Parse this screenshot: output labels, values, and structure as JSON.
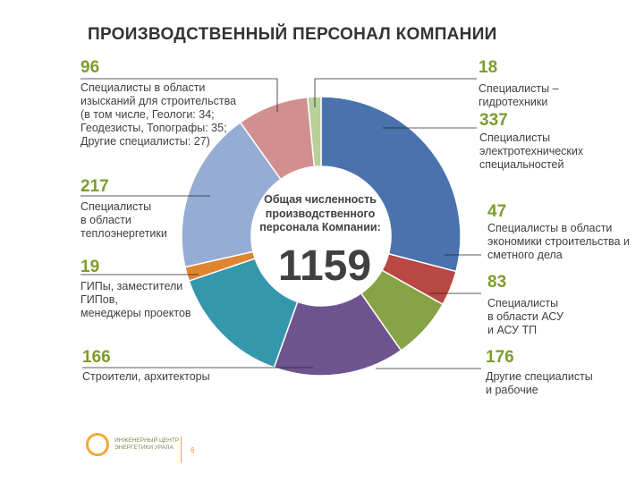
{
  "title": "ПРОИЗВОДСТВЕННЫЙ ПЕРСОНАЛ КОМПАНИИ",
  "center": {
    "text": "Общая численность\nпроизводственного\nперсонала Компании:",
    "total": "1159"
  },
  "labels": {
    "hydro_val": "18",
    "hydro_desc": "Специалисты –\nгидротехники",
    "electro_val": "337",
    "electro_desc": "Специалисты\nэлектротехнических\nспециальностей",
    "econ_val": "47",
    "econ_desc": "Специалисты в области\nэкономики строительства и\nсметного дела",
    "asu_val": "83",
    "asu_desc": "Специалисты\nв области АСУ\nи АСУ ТП",
    "other_val": "176",
    "other_desc": "Другие специалисты\nи рабочие",
    "builders_val": "166",
    "builders_desc": "Строители, архитекторы",
    "gip_val": "19",
    "gip_desc": "ГИПы, заместители\nГИПов,\nменеджеры проектов",
    "heat_val": "217",
    "heat_desc": "Специалисты\nв области\nтеплоэнергетики",
    "survey_val": "96",
    "survey_desc": "Специалисты в области\nизысканий  для строительства\n(в том числе, Геологи: 34;\nГеодезисты, Топографы: 35;\nДругие специалисты: 27)"
  },
  "footer": {
    "logo_text": "ИНЖЕНЕРНЫЙ ЦЕНТР\nЭНЕРГЕТИКИ   УРАЛА",
    "page": "6"
  },
  "chart_data": {
    "type": "pie",
    "donut": true,
    "title": "ПРОИЗВОДСТВЕННЫЙ ПЕРСОНАЛ КОМПАНИИ",
    "total": 1159,
    "slices": [
      {
        "label": "Специалисты электротехнических специальностей",
        "value": 337,
        "color": "#4a73ad"
      },
      {
        "label": "Специалисты в области экономики строительства и сметного дела",
        "value": 47,
        "color": "#b94744"
      },
      {
        "label": "Специалисты в области АСУ и АСУ ТП",
        "value": 83,
        "color": "#86a345"
      },
      {
        "label": "Другие специалисты и рабочие",
        "value": 176,
        "color": "#6e548f"
      },
      {
        "label": "Строители, архитекторы",
        "value": 166,
        "color": "#3497ab"
      },
      {
        "label": "ГИПы, заместители ГИПов, менеджеры проектов",
        "value": 19,
        "color": "#df8530"
      },
      {
        "label": "Специалисты в области теплоэнергетики",
        "value": 217,
        "color": "#95acd4"
      },
      {
        "label": "Специалисты в области изысканий для строительства",
        "value": 96,
        "color": "#d28f8f"
      },
      {
        "label": "Специалисты – гидротехники",
        "value": 18,
        "color": "#b7d199"
      }
    ]
  }
}
